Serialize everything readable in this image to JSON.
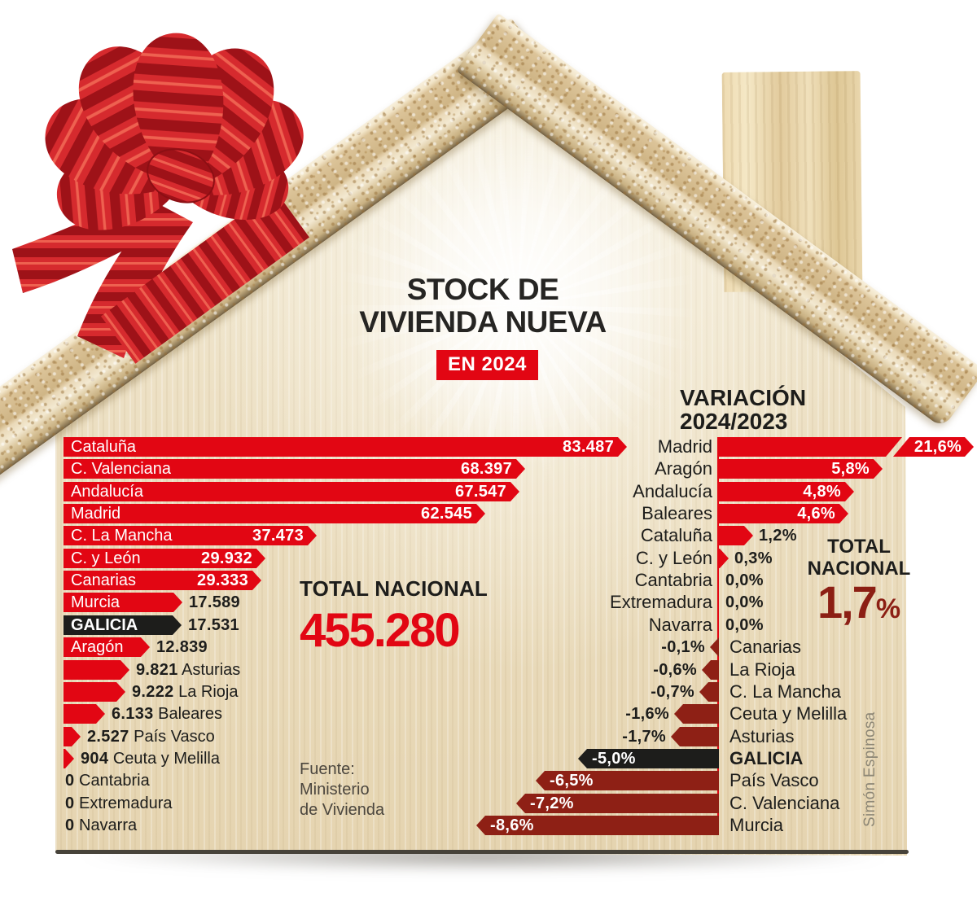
{
  "colors": {
    "red": "#e20613",
    "dark_red": "#8e2015",
    "highlight_black": "#1d1d1b",
    "total_left_red": "#e20613",
    "total_right_dark_red": "#8c1f14",
    "white": "#ffffff"
  },
  "title": {
    "line1": "STOCK DE",
    "line2": "VIVIENDA NUEVA",
    "badge": "EN 2024"
  },
  "source": {
    "line1": "Fuente:",
    "line2": "Ministerio",
    "line3": "de Vivienda"
  },
  "credit": "Simón Espinosa",
  "chart_data": [
    {
      "type": "bar",
      "name": "stock-vivienda-nueva-2024",
      "orientation": "horizontal-right",
      "title": "STOCK DE VIVIENDA NUEVA EN 2024",
      "total_label": "TOTAL NACIONAL",
      "total_value": "455.280",
      "highlight": "GALICIA",
      "xlim": [
        0,
        83487
      ],
      "rows": [
        {
          "label": "Cataluña",
          "value": 83487,
          "display": "83.487"
        },
        {
          "label": "C. Valenciana",
          "value": 68397,
          "display": "68.397"
        },
        {
          "label": "Andalucía",
          "value": 67547,
          "display": "67.547"
        },
        {
          "label": "Madrid",
          "value": 62545,
          "display": "62.545"
        },
        {
          "label": "C. La Mancha",
          "value": 37473,
          "display": "37.473"
        },
        {
          "label": "C. y León",
          "value": 29932,
          "display": "29.932"
        },
        {
          "label": "Canarias",
          "value": 29333,
          "display": "29.333"
        },
        {
          "label": "Murcia",
          "value": 17589,
          "display": "17.589"
        },
        {
          "label": "GALICIA",
          "value": 17531,
          "display": "17.531"
        },
        {
          "label": "Aragón",
          "value": 12839,
          "display": "12.839"
        },
        {
          "label": "Asturias",
          "value": 9821,
          "display": "9.821"
        },
        {
          "label": "La Rioja",
          "value": 9222,
          "display": "9.222"
        },
        {
          "label": "Baleares",
          "value": 6133,
          "display": "6.133"
        },
        {
          "label": "País Vasco",
          "value": 2527,
          "display": "2.527"
        },
        {
          "label": "Ceuta y Melilla",
          "value": 904,
          "display": "904"
        },
        {
          "label": "Cantabria",
          "value": 0,
          "display": "0"
        },
        {
          "label": "Extremadura",
          "value": 0,
          "display": "0"
        },
        {
          "label": "Navarra",
          "value": 0,
          "display": "0"
        }
      ]
    },
    {
      "type": "bar",
      "name": "variacion-2024-2023",
      "orientation": "horizontal-diverging",
      "title_line1": "VARIACIÓN",
      "title_line2": "2024/2023",
      "total_label_line1": "TOTAL",
      "total_label_line2": "NACIONAL",
      "total_value_num": "1,7",
      "total_value_pct": "%",
      "highlight": "GALICIA",
      "unit": "%",
      "rows": [
        {
          "label": "Madrid",
          "value": 21.6,
          "display": "21,6%",
          "truncated": true
        },
        {
          "label": "Aragón",
          "value": 5.8,
          "display": "5,8%"
        },
        {
          "label": "Andalucía",
          "value": 4.8,
          "display": "4,8%"
        },
        {
          "label": "Baleares",
          "value": 4.6,
          "display": "4,6%"
        },
        {
          "label": "Cataluña",
          "value": 1.2,
          "display": "1,2%"
        },
        {
          "label": "C. y León",
          "value": 0.3,
          "display": "0,3%"
        },
        {
          "label": "Cantabria",
          "value": 0.0,
          "display": "0,0%"
        },
        {
          "label": "Extremadura",
          "value": 0.0,
          "display": "0,0%"
        },
        {
          "label": "Navarra",
          "value": 0.0,
          "display": "0,0%"
        },
        {
          "label": "Canarias",
          "value": -0.1,
          "display": "-0,1%"
        },
        {
          "label": "La Rioja",
          "value": -0.6,
          "display": "-0,6%"
        },
        {
          "label": "C. La Mancha",
          "value": -0.7,
          "display": "-0,7%"
        },
        {
          "label": "Ceuta y Melilla",
          "value": -1.6,
          "display": "-1,6%"
        },
        {
          "label": "Asturias",
          "value": -1.7,
          "display": "-1,7%"
        },
        {
          "label": "GALICIA",
          "value": -5.0,
          "display": "-5,0%"
        },
        {
          "label": "País Vasco",
          "value": -6.5,
          "display": "-6,5%"
        },
        {
          "label": "C. Valenciana",
          "value": -7.2,
          "display": "-7,2%"
        },
        {
          "label": "Murcia",
          "value": -8.6,
          "display": "-8,6%"
        }
      ]
    }
  ]
}
